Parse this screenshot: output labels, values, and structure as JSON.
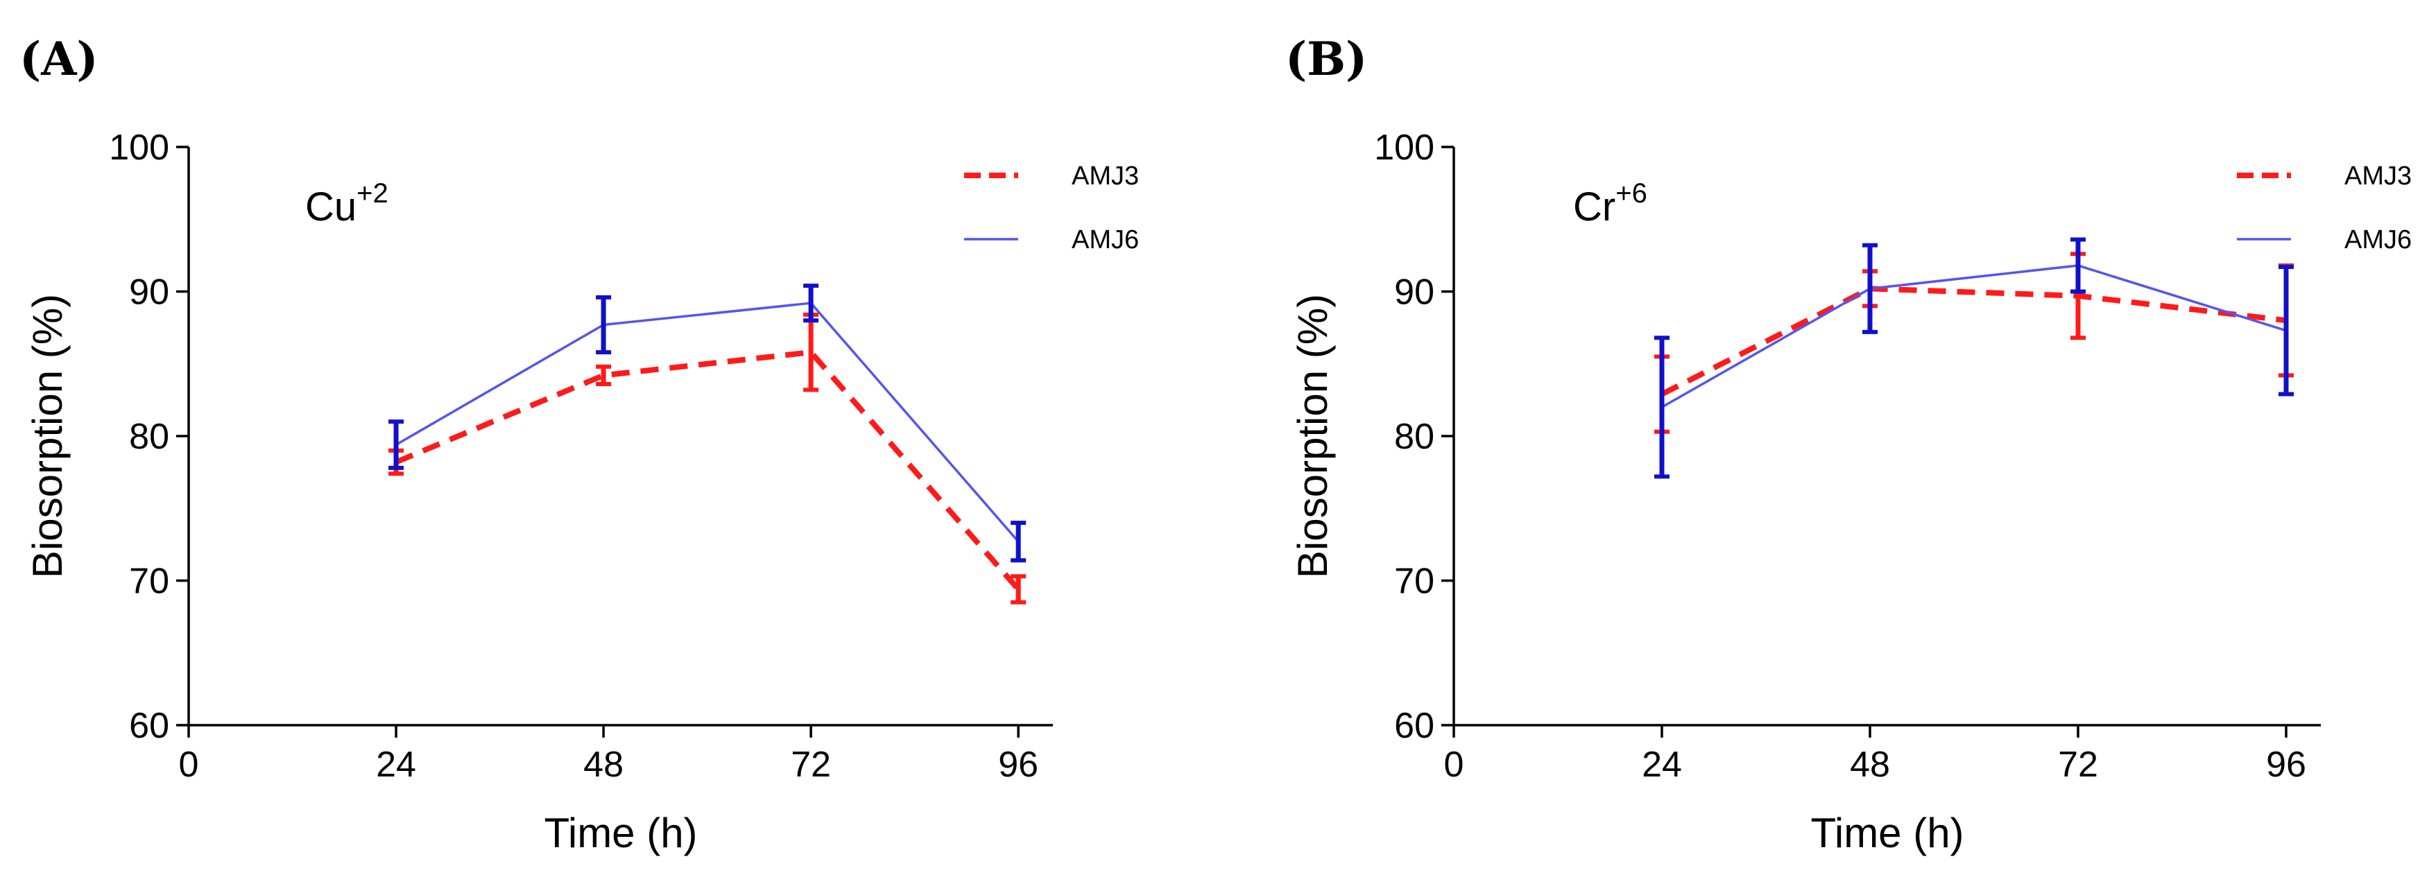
{
  "chart_data": [
    {
      "type": "line",
      "panel_label": "(A)",
      "annotation": {
        "base": "Cu",
        "superscript": "+2"
      },
      "xlabel": "Time (h)",
      "ylabel": "Biosorption (%)",
      "xlim": [
        0,
        100
      ],
      "ylim": [
        60,
        100
      ],
      "xticks": [
        0,
        24,
        48,
        72,
        96
      ],
      "yticks": [
        60,
        70,
        80,
        90,
        100
      ],
      "legend_position": "top-right",
      "series": [
        {
          "name": "AMJ3",
          "color": "#ff1a1a",
          "dashed": true,
          "x": [
            24,
            48,
            72,
            96
          ],
          "y": [
            78.2,
            84.2,
            85.8,
            69.4
          ],
          "err": [
            0.8,
            0.6,
            2.6,
            0.9
          ]
        },
        {
          "name": "AMJ6",
          "color": "#5555ee",
          "errcolor": "#1010cc",
          "dashed": false,
          "x": [
            24,
            48,
            72,
            96
          ],
          "y": [
            79.4,
            87.7,
            89.2,
            72.7
          ],
          "err": [
            1.6,
            1.9,
            1.2,
            1.3
          ]
        }
      ]
    },
    {
      "type": "line",
      "panel_label": "(B)",
      "annotation": {
        "base": "Cr",
        "superscript": "+6"
      },
      "xlabel": "Time (h)",
      "ylabel": "Biosorption (%)",
      "xlim": [
        0,
        100
      ],
      "ylim": [
        60,
        100
      ],
      "xticks": [
        0,
        24,
        48,
        72,
        96
      ],
      "yticks": [
        60,
        70,
        80,
        90,
        100
      ],
      "legend_position": "top-right",
      "series": [
        {
          "name": "AMJ3",
          "color": "#ff1a1a",
          "dashed": true,
          "x": [
            24,
            48,
            72,
            96
          ],
          "y": [
            82.9,
            90.2,
            89.7,
            88.0
          ],
          "err": [
            2.6,
            1.2,
            2.9,
            3.8
          ]
        },
        {
          "name": "AMJ6",
          "color": "#5555ee",
          "errcolor": "#1010cc",
          "dashed": false,
          "x": [
            24,
            48,
            72,
            96
          ],
          "y": [
            82.0,
            90.2,
            91.8,
            87.3
          ],
          "err": [
            4.8,
            3.0,
            1.8,
            4.4
          ]
        }
      ]
    }
  ]
}
